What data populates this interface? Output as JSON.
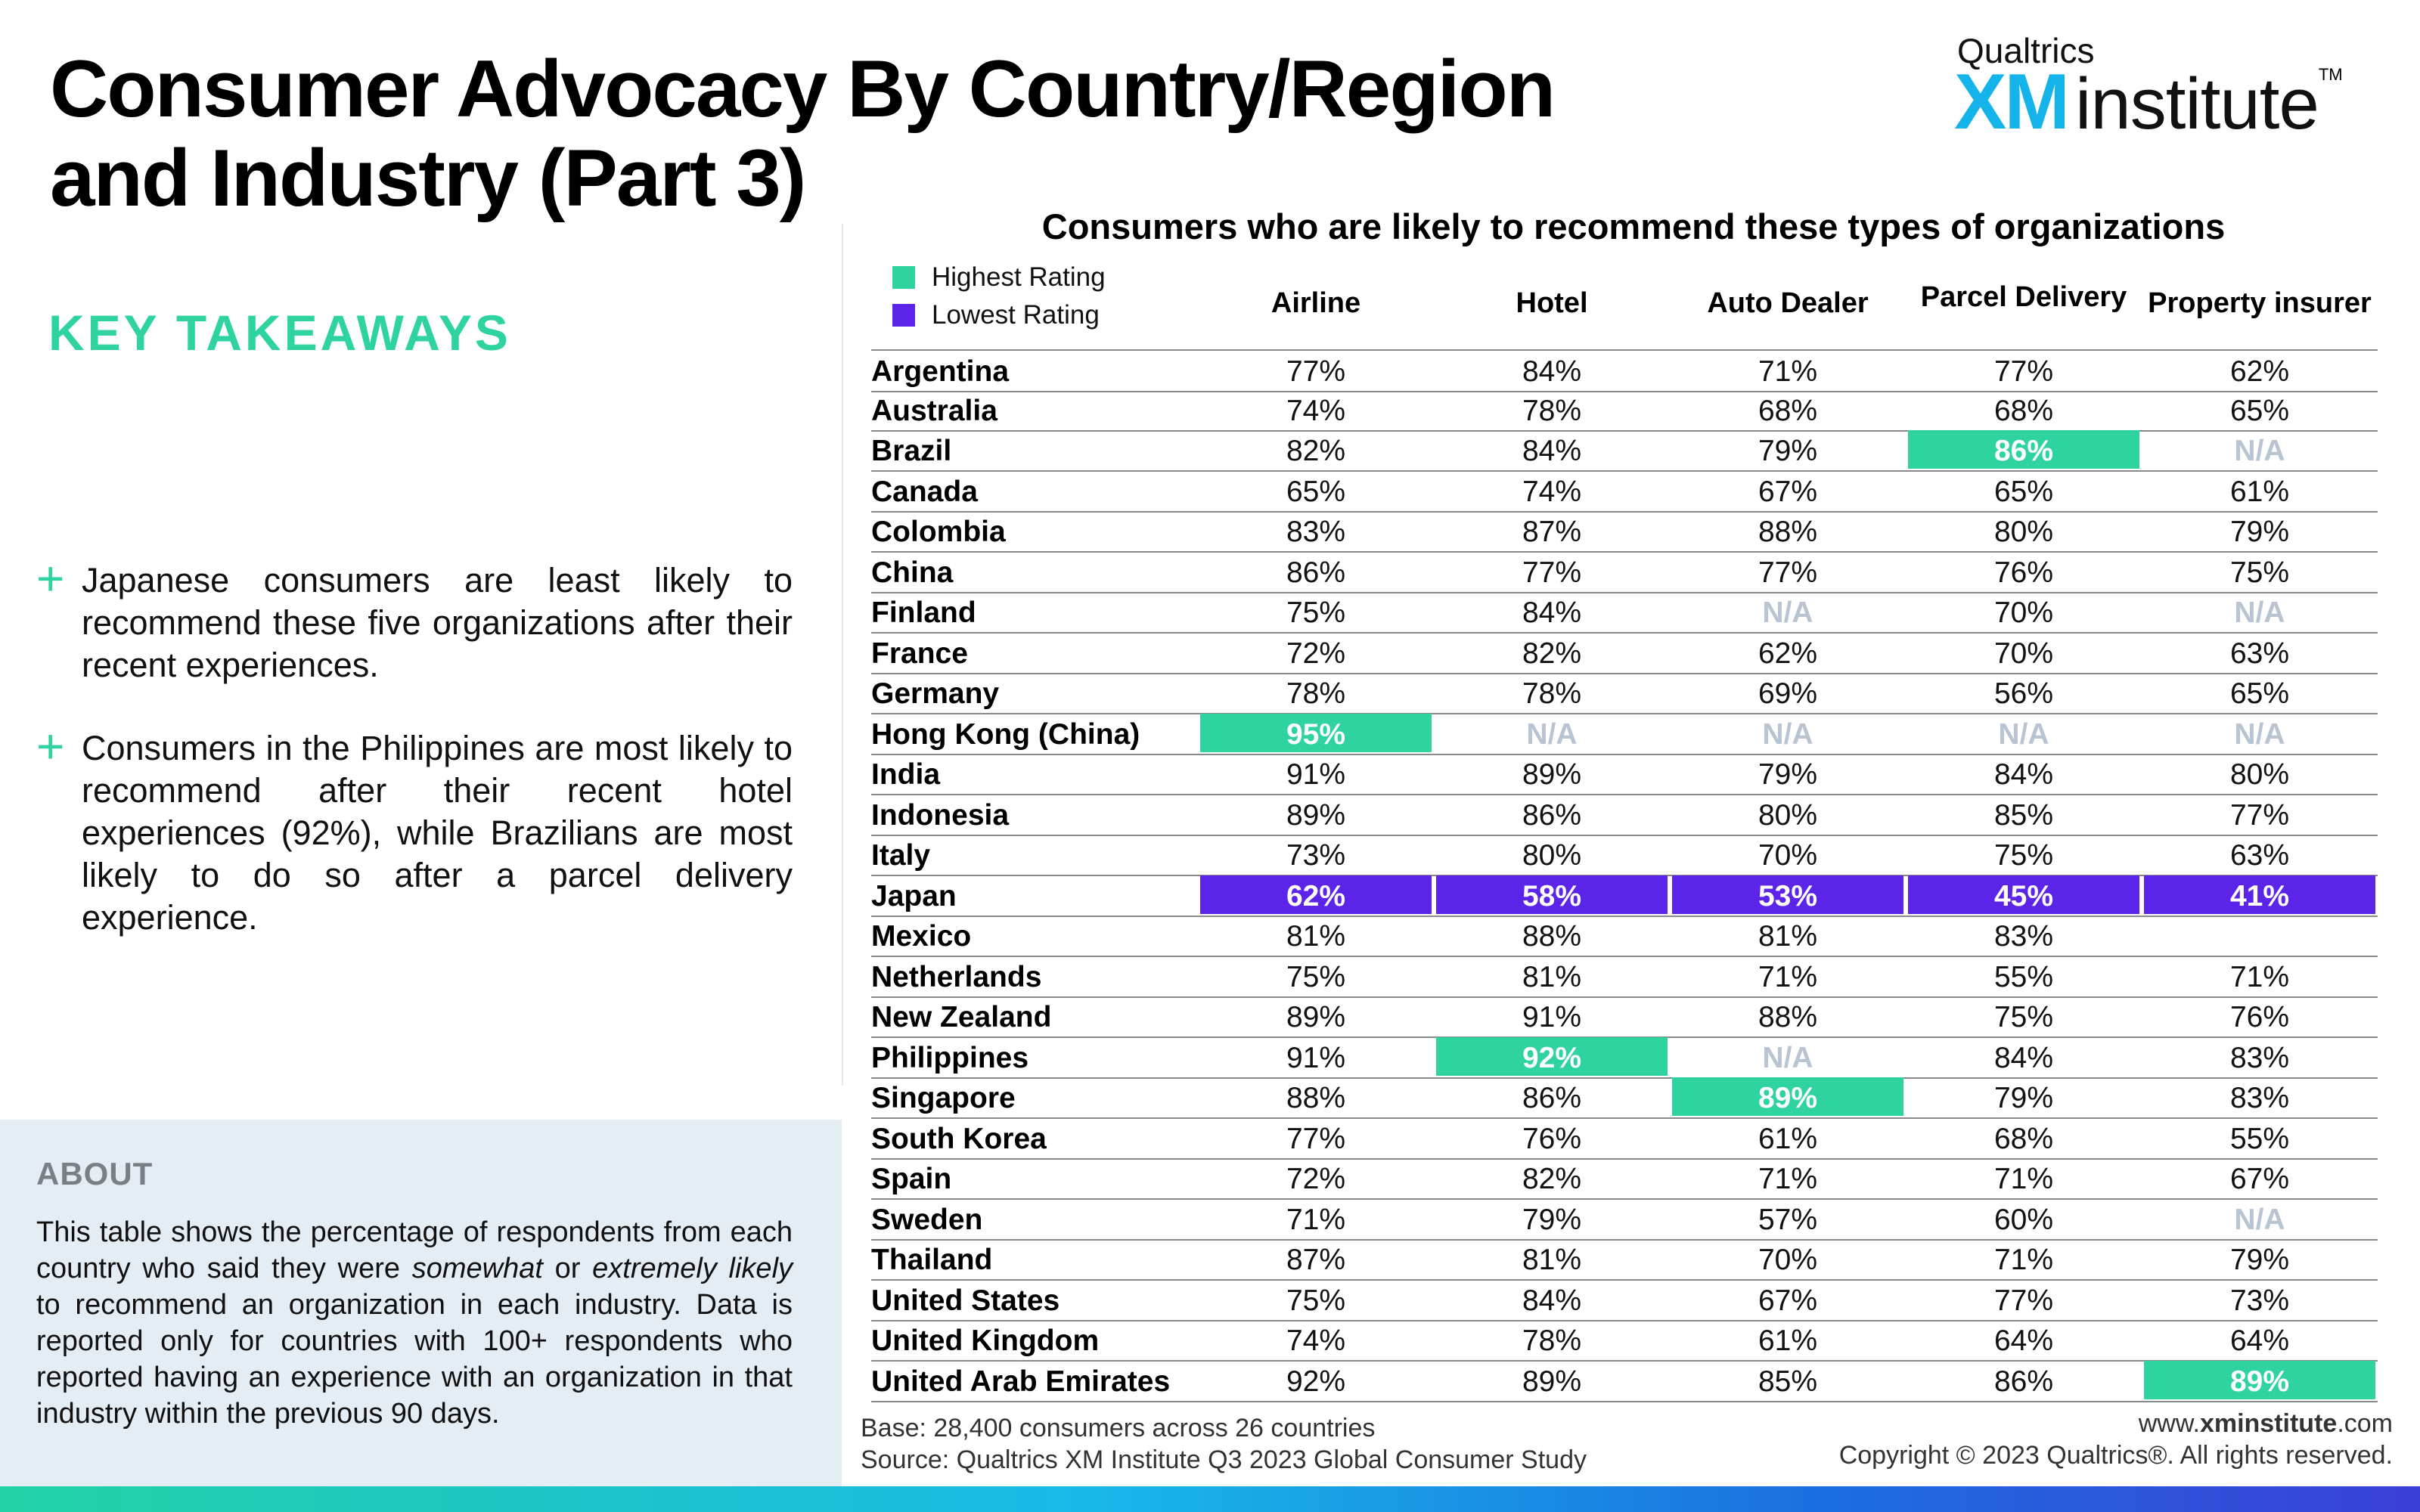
{
  "title": "Consumer Advocacy By Country/Region and Industry (Part 3)",
  "brand": {
    "top": "Qualtrics",
    "xm": "XM",
    "institute": "institute",
    "tm": "TM"
  },
  "takeaways": {
    "heading": "KEY TAKEAWAYS",
    "bullets": [
      "Japanese consumers are least likely to recommend these five organizations after their recent experiences.",
      "Consumers in the Philippines are most likely to recommend after their recent hotel experiences (92%), while Brazilians are most likely to do so after a parcel delivery experience."
    ]
  },
  "about": {
    "heading": "ABOUT",
    "text_before": "This table shows the percentage of respondents from each country who said they were ",
    "em1": "somewhat",
    "text_mid": " or ",
    "em2": "extremely likely",
    "text_after": " to recommend an organization in each industry. Data is reported only for countries with 100+ respondents who reported having an experience with an organization in that industry within the previous 90 days."
  },
  "footer": {
    "base": "Base: 28,400 consumers across 26 countries",
    "source": "Source: Qualtrics XM Institute Q3 2023 Global Consumer Study",
    "url_prefix": "www.",
    "url_bold": "xminstitute",
    "url_suffix": ".com",
    "copyright": "Copyright © 2023 Qualtrics®. All rights reserved."
  },
  "colors": {
    "highest": "#2ed3a0",
    "lowest": "#5b24e8",
    "na": "#b8c4d2",
    "accent": "#2ed3a0"
  },
  "chart_data": {
    "type": "table",
    "title": "Consumers who are likely to recommend these types of organizations",
    "legend": [
      {
        "label": "Highest Rating",
        "color": "#2ed3a0"
      },
      {
        "label": "Lowest Rating",
        "color": "#5b24e8"
      }
    ],
    "columns": [
      "Airline",
      "Hotel",
      "Auto Dealer",
      "Parcel Delivery",
      "Property insurer"
    ],
    "rows": [
      {
        "country": "Argentina",
        "values": [
          "77%",
          "84%",
          "71%",
          "77%",
          "62%"
        ]
      },
      {
        "country": "Australia",
        "values": [
          "74%",
          "78%",
          "68%",
          "68%",
          "65%"
        ]
      },
      {
        "country": "Brazil",
        "values": [
          "82%",
          "84%",
          "79%",
          "86%",
          "N/A"
        ],
        "highlight": {
          "3": "hi"
        }
      },
      {
        "country": "Canada",
        "values": [
          "65%",
          "74%",
          "67%",
          "65%",
          "61%"
        ]
      },
      {
        "country": "Colombia",
        "values": [
          "83%",
          "87%",
          "88%",
          "80%",
          "79%"
        ]
      },
      {
        "country": "China",
        "values": [
          "86%",
          "77%",
          "77%",
          "76%",
          "75%"
        ]
      },
      {
        "country": "Finland",
        "values": [
          "75%",
          "84%",
          "N/A",
          "70%",
          "N/A"
        ]
      },
      {
        "country": "France",
        "values": [
          "72%",
          "82%",
          "62%",
          "70%",
          "63%"
        ]
      },
      {
        "country": "Germany",
        "values": [
          "78%",
          "78%",
          "69%",
          "56%",
          "65%"
        ]
      },
      {
        "country": "Hong Kong (China)",
        "values": [
          "95%",
          "N/A",
          "N/A",
          "N/A",
          "N/A"
        ],
        "highlight": {
          "0": "hi"
        }
      },
      {
        "country": "India",
        "values": [
          "91%",
          "89%",
          "79%",
          "84%",
          "80%"
        ]
      },
      {
        "country": "Indonesia",
        "values": [
          "89%",
          "86%",
          "80%",
          "85%",
          "77%"
        ]
      },
      {
        "country": "Italy",
        "values": [
          "73%",
          "80%",
          "70%",
          "75%",
          "63%"
        ]
      },
      {
        "country": "Japan",
        "values": [
          "62%",
          "58%",
          "53%",
          "45%",
          "41%"
        ],
        "highlight": {
          "0": "lo",
          "1": "lo",
          "2": "lo",
          "3": "lo",
          "4": "lo"
        }
      },
      {
        "country": "Mexico",
        "values": [
          "81%",
          "88%",
          "81%",
          "83%",
          ""
        ]
      },
      {
        "country": "Netherlands",
        "values": [
          "75%",
          "81%",
          "71%",
          "55%",
          "71%"
        ]
      },
      {
        "country": "New Zealand",
        "values": [
          "89%",
          "91%",
          "88%",
          "75%",
          "76%"
        ]
      },
      {
        "country": "Philippines",
        "values": [
          "91%",
          "92%",
          "N/A",
          "84%",
          "83%"
        ],
        "highlight": {
          "1": "hi"
        }
      },
      {
        "country": "Singapore",
        "values": [
          "88%",
          "86%",
          "89%",
          "79%",
          "83%"
        ],
        "highlight": {
          "2": "hi"
        }
      },
      {
        "country": "South Korea",
        "values": [
          "77%",
          "76%",
          "61%",
          "68%",
          "55%"
        ]
      },
      {
        "country": "Spain",
        "values": [
          "72%",
          "82%",
          "71%",
          "71%",
          "67%"
        ]
      },
      {
        "country": "Sweden",
        "values": [
          "71%",
          "79%",
          "57%",
          "60%",
          "N/A"
        ]
      },
      {
        "country": "Thailand",
        "values": [
          "87%",
          "81%",
          "70%",
          "71%",
          "79%"
        ]
      },
      {
        "country": "United States",
        "values": [
          "75%",
          "84%",
          "67%",
          "77%",
          "73%"
        ]
      },
      {
        "country": "United Kingdom",
        "values": [
          "74%",
          "78%",
          "61%",
          "64%",
          "64%"
        ]
      },
      {
        "country": "United Arab Emirates",
        "values": [
          "92%",
          "89%",
          "85%",
          "86%",
          "89%"
        ],
        "highlight": {
          "4": "hi"
        }
      }
    ]
  }
}
